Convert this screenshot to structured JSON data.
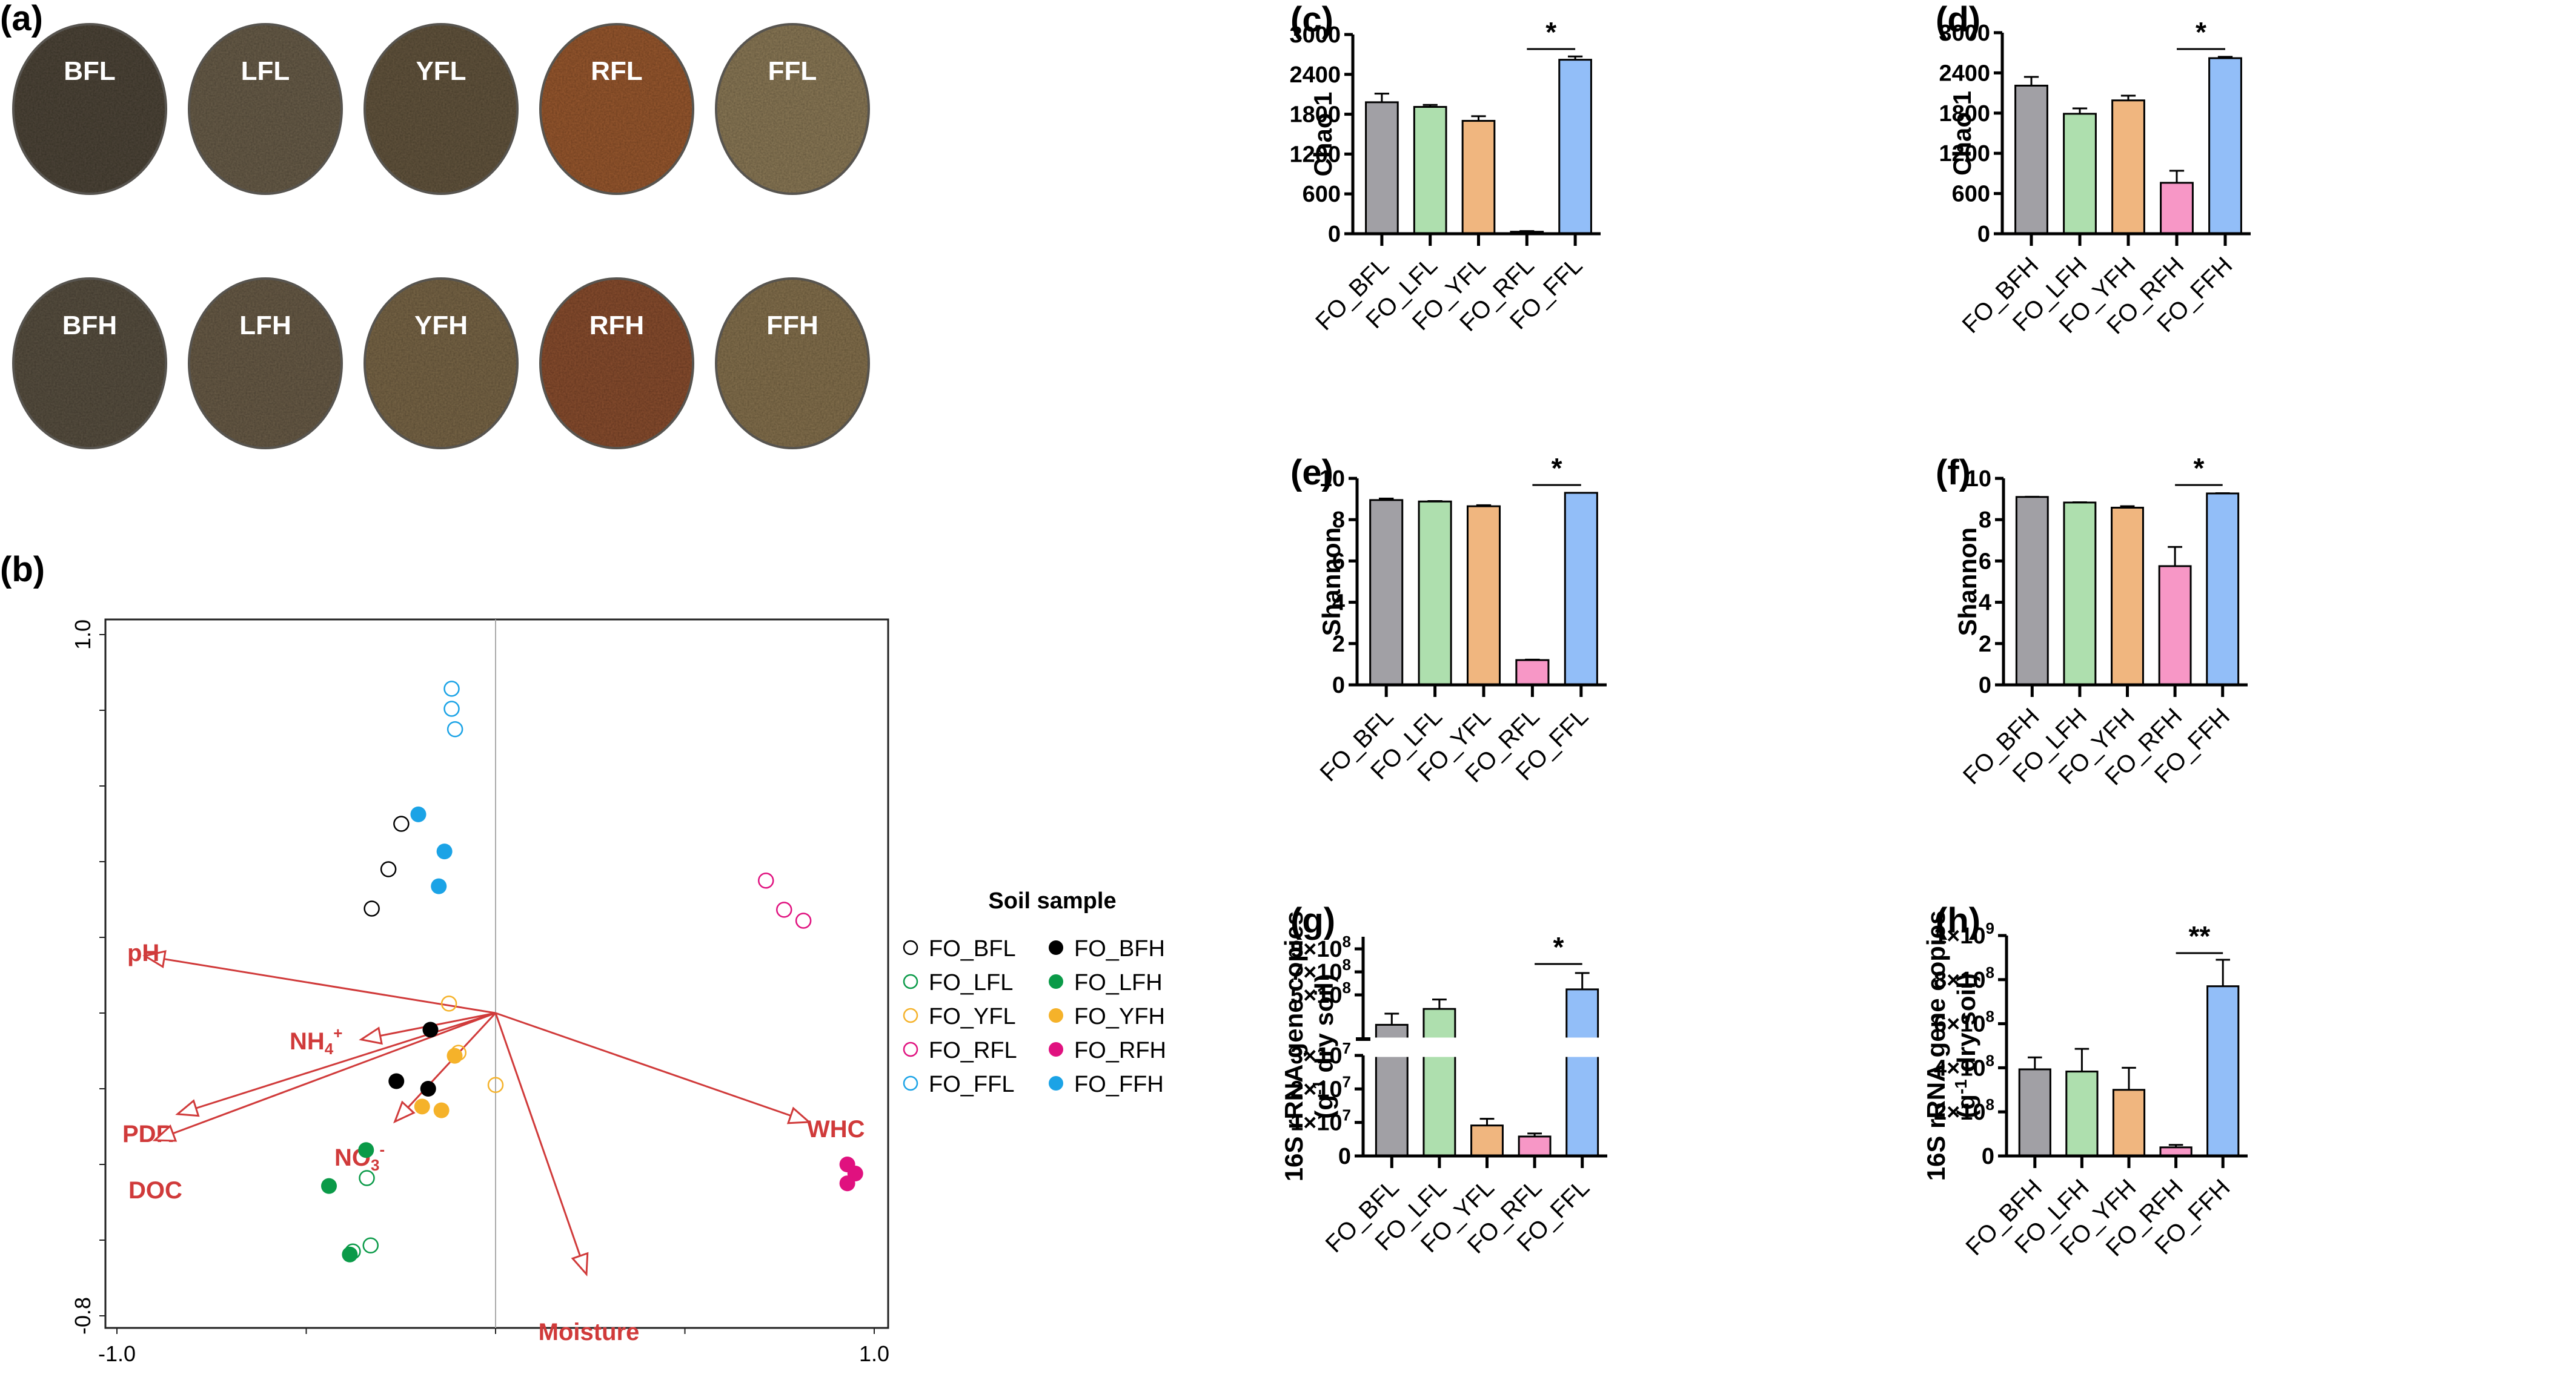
{
  "figure": {
    "panel_labels": {
      "a": "(a)",
      "b": "(b)",
      "c": "(c)",
      "d": "(d)",
      "e": "(e)",
      "f": "(f)",
      "g": "(g)",
      "h": "(h)"
    }
  },
  "photos": {
    "rows": [
      [
        {
          "label": "BFL",
          "color": "#4f473b"
        },
        {
          "label": "LFL",
          "color": "#6b5f4b"
        },
        {
          "label": "YFL",
          "color": "#65573f"
        },
        {
          "label": "RFL",
          "color": "#9a5a32"
        },
        {
          "label": "FFL",
          "color": "#8c7a58"
        }
      ],
      [
        {
          "label": "BFH",
          "color": "#5a5142"
        },
        {
          "label": "LFH",
          "color": "#6a5d48"
        },
        {
          "label": "YFH",
          "color": "#7a6748"
        },
        {
          "label": "RFH",
          "color": "#8a4f31"
        },
        {
          "label": "FFH",
          "color": "#86724f"
        }
      ]
    ]
  },
  "chart_data": [
    {
      "id": "b",
      "type": "scatter",
      "title": "",
      "xlim": [
        -1.0,
        1.0
      ],
      "ylim": [
        -0.8,
        1.0
      ],
      "x_tick_labels": [
        "-1.0",
        "1.0"
      ],
      "y_tick_labels": [
        "-0.8",
        "1.0"
      ],
      "legend": {
        "title": "Soil sample",
        "placement": "right",
        "entries": [
          {
            "name": "FO_BFL",
            "color": "#000000",
            "filled": false
          },
          {
            "name": "FO_BFH",
            "color": "#000000",
            "filled": true
          },
          {
            "name": "FO_LFL",
            "color": "#0a9a48",
            "filled": false
          },
          {
            "name": "FO_LFH",
            "color": "#0a9a48",
            "filled": true
          },
          {
            "name": "FO_YFL",
            "color": "#f5b22a",
            "filled": false
          },
          {
            "name": "FO_YFH",
            "color": "#f5b22a",
            "filled": true
          },
          {
            "name": "FO_RFL",
            "color": "#e0117f",
            "filled": false
          },
          {
            "name": "FO_RFH",
            "color": "#e0117f",
            "filled": true
          },
          {
            "name": "FO_FFL",
            "color": "#1ba3e6",
            "filled": false
          },
          {
            "name": "FO_FFH",
            "color": "#1ba3e6",
            "filled": true
          }
        ]
      },
      "series": [
        {
          "name": "FO_FFL",
          "points": [
            [
              -0.116,
              0.857
            ],
            [
              -0.116,
              0.804
            ],
            [
              -0.107,
              0.75
            ]
          ]
        },
        {
          "name": "FO_FFH",
          "points": [
            [
              -0.204,
              0.525
            ],
            [
              -0.135,
              0.427
            ],
            [
              -0.15,
              0.335
            ]
          ]
        },
        {
          "name": "FO_BFL",
          "points": [
            [
              -0.249,
              0.5
            ],
            [
              -0.283,
              0.38
            ],
            [
              -0.327,
              0.276
            ]
          ]
        },
        {
          "name": "FO_RFL",
          "points": [
            [
              0.714,
              0.35
            ],
            [
              0.762,
              0.273
            ],
            [
              0.813,
              0.244
            ]
          ]
        },
        {
          "name": "FO_YFL",
          "points": [
            [
              -0.123,
              0.025
            ],
            [
              -0.098,
              -0.105
            ],
            [
              0.0,
              -0.19
            ]
          ]
        },
        {
          "name": "FO_BFH",
          "points": [
            [
              -0.172,
              -0.044
            ],
            [
              -0.262,
              -0.18
            ],
            [
              -0.178,
              -0.2
            ]
          ]
        },
        {
          "name": "FO_YFH",
          "points": [
            [
              -0.108,
              -0.113
            ],
            [
              -0.194,
              -0.247
            ],
            [
              -0.143,
              -0.257
            ]
          ]
        },
        {
          "name": "FO_LFH",
          "points": [
            [
              -0.342,
              -0.362
            ],
            [
              -0.44,
              -0.457
            ],
            [
              -0.385,
              -0.638
            ]
          ]
        },
        {
          "name": "FO_LFL",
          "points": [
            [
              -0.34,
              -0.436
            ],
            [
              -0.377,
              -0.63
            ],
            [
              -0.33,
              -0.614
            ]
          ]
        },
        {
          "name": "FO_RFH",
          "points": [
            [
              0.929,
              -0.4
            ],
            [
              0.95,
              -0.424
            ],
            [
              0.929,
              -0.45
            ]
          ]
        }
      ],
      "arrows": [
        {
          "label": "pH",
          "x": -0.926,
          "y": 0.151
        },
        {
          "label": "NH4+",
          "label_main": "NH",
          "label_sub": "4",
          "label_sup": "+",
          "x": -0.355,
          "y": -0.07
        },
        {
          "label": "PDR",
          "x": -0.84,
          "y": -0.267
        },
        {
          "label": "DOC",
          "x": -0.9,
          "y": -0.336
        },
        {
          "label": "NO3-",
          "label_main": "NO",
          "label_sub": "3",
          "label_sup": "-",
          "x": -0.266,
          "y": -0.287
        },
        {
          "label": "Moisture",
          "x": 0.24,
          "y": -0.69
        },
        {
          "label": "WHC",
          "x": 0.828,
          "y": -0.288
        }
      ],
      "arrow_color": "#d03a3a"
    },
    {
      "id": "c",
      "type": "bar",
      "ylabel": "Chao 1",
      "ylim": [
        0,
        3000
      ],
      "yticks": [
        0,
        600,
        1200,
        1800,
        2400,
        3000
      ],
      "ytick_labels": [
        "0",
        "600",
        "1200",
        "1800",
        "2400",
        "3000"
      ],
      "categories": [
        "FO_BFL",
        "FO_LFL",
        "FO_YFL",
        "FO_RFL",
        "FO_FFL"
      ],
      "values": [
        1980,
        1910,
        1700,
        30,
        2620
      ],
      "errors": [
        130,
        30,
        70,
        10,
        50
      ],
      "significance": {
        "label": "*",
        "from": 3,
        "to": 4
      }
    },
    {
      "id": "d",
      "type": "bar",
      "ylabel": "Chao 1",
      "ylim": [
        0,
        3000
      ],
      "yticks": [
        0,
        600,
        1200,
        1800,
        2400,
        3000
      ],
      "ytick_labels": [
        "0",
        "600",
        "1200",
        "1800",
        "2400",
        "3000"
      ],
      "categories": [
        "FO_BFH",
        "FO_LFH",
        "FO_YFH",
        "FO_RFH",
        "FO_FFH"
      ],
      "values": [
        2210,
        1790,
        1990,
        760,
        2620
      ],
      "errors": [
        130,
        80,
        70,
        180,
        20
      ],
      "significance": {
        "label": "*",
        "from": 3,
        "to": 4
      }
    },
    {
      "id": "e",
      "type": "bar",
      "ylabel": "Shannon",
      "ylim": [
        0,
        10
      ],
      "yticks": [
        0,
        2,
        4,
        6,
        8,
        10
      ],
      "ytick_labels": [
        "0",
        "2",
        "4",
        "6",
        "8",
        "10"
      ],
      "categories": [
        "FO_BFL",
        "FO_LFL",
        "FO_YFL",
        "FO_RFL",
        "FO_FFL"
      ],
      "values": [
        8.95,
        8.88,
        8.65,
        1.2,
        9.3
      ],
      "errors": [
        0.07,
        0.02,
        0.05,
        0.02,
        0.0
      ],
      "significance": {
        "label": "*",
        "from": 3,
        "to": 4
      }
    },
    {
      "id": "f",
      "type": "bar",
      "ylabel": "Shannon",
      "ylim": [
        0,
        10
      ],
      "yticks": [
        0,
        2,
        4,
        6,
        8,
        10
      ],
      "ytick_labels": [
        "0",
        "2",
        "4",
        "6",
        "8",
        "10"
      ],
      "categories": [
        "FO_BFH",
        "FO_LFH",
        "FO_YFH",
        "FO_RFH",
        "FO_FFH"
      ],
      "values": [
        9.1,
        8.83,
        8.58,
        5.75,
        9.27
      ],
      "errors": [
        0.01,
        0.01,
        0.07,
        0.93,
        0.01
      ],
      "significance": {
        "label": "*",
        "from": 3,
        "to": 4
      }
    },
    {
      "id": "g",
      "type": "bar",
      "ylabel": "16S rRNA  gene copies",
      "ylabel2_main": "(g",
      "ylabel2_sup": "-1",
      "ylabel2_rest": " dry soil)",
      "broken_axis": true,
      "lower_ylim": [
        0,
        30000000
      ],
      "upper_ylim": [
        107000000,
        1000000000
      ],
      "lower_ticks": [
        0,
        10000000,
        20000000,
        30000000
      ],
      "lower_tick_labels": [
        {
          "base": "0",
          "exp": ""
        },
        {
          "base": "1×10",
          "exp": "7"
        },
        {
          "base": "2×10",
          "exp": "7"
        },
        {
          "base": "3×10",
          "exp": "7"
        }
      ],
      "upper_ticks": [
        500000000,
        700000000,
        900000000
      ],
      "upper_tick_labels": [
        {
          "base": "5×10",
          "exp": "8"
        },
        {
          "base": "7×10",
          "exp": "8"
        },
        {
          "base": "9×10",
          "exp": "8"
        }
      ],
      "categories": [
        "FO_BFL",
        "FO_LFL",
        "FO_YFL",
        "FO_RFL",
        "FO_FFL"
      ],
      "values": [
        240000000,
        378000000,
        9100000,
        5800000,
        548000000
      ],
      "errors": [
        97000000,
        82000000,
        2000000,
        900000,
        142000000
      ],
      "significance": {
        "label": "*",
        "from": 3,
        "to": 4
      }
    },
    {
      "id": "h",
      "type": "bar",
      "ylabel": "16S rRNA  gene copies",
      "ylabel2_main": "(g",
      "ylabel2_sup": "-1",
      "ylabel2_rest": " dry soil)",
      "ylim": [
        0,
        1000000000
      ],
      "yticks": [
        0,
        200000000,
        400000000,
        600000000,
        800000000,
        1000000000
      ],
      "ytick_labels": [
        {
          "base": "0",
          "exp": ""
        },
        {
          "base": "2×10",
          "exp": "8"
        },
        {
          "base": "4×10",
          "exp": "8"
        },
        {
          "base": "6×10",
          "exp": "8"
        },
        {
          "base": "8×10",
          "exp": "8"
        },
        {
          "base": "1×10",
          "exp": "9"
        }
      ],
      "categories": [
        "FO_BFH",
        "FO_LFH",
        "FO_YFH",
        "FO_RFH",
        "FO_FFH"
      ],
      "values": [
        393000000,
        383000000,
        300000000,
        39000000,
        770000000
      ],
      "errors": [
        54000000,
        103000000,
        100000000,
        11000000,
        120000000
      ],
      "significance": {
        "label": "**",
        "from": 3,
        "to": 4
      }
    }
  ],
  "bar_colors": [
    "#a1a0a5",
    "#aedfae",
    "#f0b67f",
    "#f797c6",
    "#92bef8"
  ]
}
